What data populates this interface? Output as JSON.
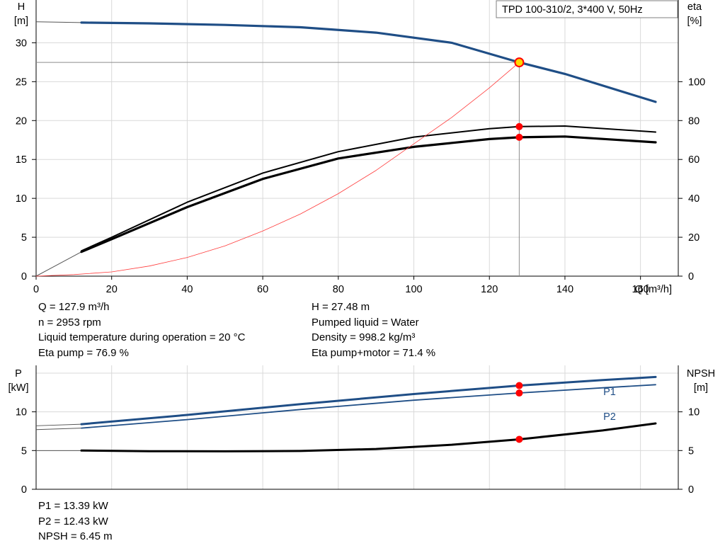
{
  "title_box": "TPD 100-310/2, 3*400 V, 50Hz",
  "colors": {
    "pump_curve": "#1f4e86",
    "eff_curve": "#000000",
    "system_curve": "#ff3b3b",
    "duty_point": "#ff0000",
    "duty_point_head": "#ffd700",
    "grid": "#d9d9d9"
  },
  "top_chart": {
    "y_left_label": [
      "H",
      "[m]"
    ],
    "y_right_label": [
      "eta",
      "[%]"
    ],
    "x_label": "Q [m³/h]",
    "x_ticks": [
      "0",
      "20",
      "40",
      "60",
      "80",
      "100",
      "120",
      "140",
      "160"
    ],
    "y_left_ticks": [
      "0",
      "5",
      "10",
      "15",
      "20",
      "25",
      "30"
    ],
    "y_right_ticks": [
      "0",
      "20",
      "40",
      "60",
      "80",
      "100"
    ]
  },
  "bottom_chart": {
    "y_left_label": [
      "P",
      "[kW]"
    ],
    "y_right_label": [
      "NPSH",
      "[m]"
    ],
    "y_left_ticks": [
      "0",
      "5",
      "10"
    ],
    "y_right_ticks": [
      "0",
      "5",
      "10"
    ],
    "series_labels": [
      "P1",
      "P2"
    ]
  },
  "info_top_left": [
    "Q = 127.9 m³/h",
    "n = 2953 rpm",
    "Liquid temperature during operation = 20 °C",
    "Eta pump = 76.9 %"
  ],
  "info_top_right": [
    "H = 27.48 m",
    "Pumped liquid = Water",
    "Density = 998.2 kg/m³",
    "Eta pump+motor = 71.4 %"
  ],
  "info_bottom": [
    "P1 = 13.39 kW",
    "P2 = 12.43 kW",
    "NPSH = 6.45 m"
  ],
  "chart_data": [
    {
      "type": "line",
      "xlabel": "Q [m³/h]",
      "ylabel": "H [m]",
      "y2label": "eta [%]",
      "xlim": [
        0,
        170
      ],
      "ylim": [
        0,
        35
      ],
      "y2lim": [
        0,
        140
      ],
      "grid": true,
      "series": [
        {
          "name": "",
          "axis": "left",
          "x": [
            0,
            12,
            30,
            50,
            70,
            90,
            110,
            127.9,
            140,
            164
          ],
          "y": [
            32.7,
            32.6,
            32.5,
            32.3,
            32.0,
            31.3,
            30.0,
            27.48,
            26.0,
            22.4
          ]
        },
        {
          "name": "Eta pump+motor",
          "axis": "right",
          "x": [
            0,
            12,
            20,
            40,
            60,
            80,
            100,
            120,
            127.9,
            140,
            164
          ],
          "y": [
            0,
            12.5,
            19,
            35.5,
            50,
            60.5,
            66.5,
            70.5,
            71.4,
            71.8,
            68.8
          ]
        },
        {
          "name": "Eta pump",
          "axis": "right",
          "x": [
            0,
            12,
            20,
            40,
            60,
            80,
            100,
            120,
            127.9,
            140,
            164
          ],
          "y": [
            0,
            13,
            20,
            38,
            53,
            64,
            71.5,
            75.8,
            76.9,
            77.2,
            74.1
          ]
        },
        {
          "name": "",
          "axis": "left",
          "x": [
            0,
            10,
            20,
            30,
            40,
            50,
            60,
            70,
            80,
            90,
            100,
            110,
            120,
            127.9
          ],
          "y": [
            0,
            0.2,
            0.55,
            1.3,
            2.4,
            3.9,
            5.8,
            8.0,
            10.6,
            13.6,
            17.0,
            20.4,
            24.2,
            27.48
          ]
        }
      ],
      "duty_point": {
        "x": 127.9,
        "y": 27.48
      }
    },
    {
      "type": "line",
      "ylabel": "P [kW]",
      "y2label": "NPSH [m]",
      "xlim": [
        0,
        170
      ],
      "ylim": [
        0,
        16
      ],
      "y2lim": [
        0,
        16
      ],
      "grid": true,
      "series": [
        {
          "name": "P1",
          "axis": "left",
          "x": [
            0,
            12,
            40,
            70,
            100,
            127.9,
            150,
            164
          ],
          "y": [
            8.2,
            8.4,
            9.6,
            11.0,
            12.3,
            13.39,
            14.1,
            14.5
          ]
        },
        {
          "name": "P2",
          "axis": "left",
          "x": [
            0,
            12,
            40,
            70,
            100,
            127.9,
            150,
            164
          ],
          "y": [
            7.7,
            7.9,
            9.0,
            10.3,
            11.5,
            12.43,
            13.1,
            13.5
          ]
        },
        {
          "name": "NPSH",
          "axis": "right",
          "x": [
            0,
            12,
            30,
            50,
            70,
            90,
            110,
            127.9,
            150,
            164
          ],
          "y": [
            5,
            5.0,
            4.92,
            4.9,
            4.95,
            5.2,
            5.75,
            6.45,
            7.6,
            8.5
          ]
        }
      ]
    }
  ]
}
